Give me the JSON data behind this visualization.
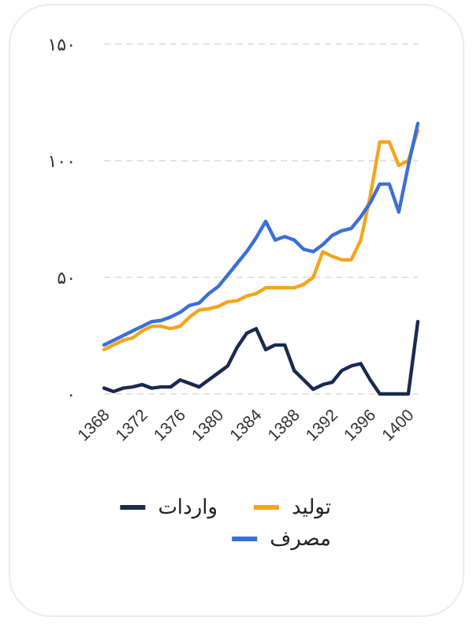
{
  "chart_data": {
    "type": "line",
    "x": [
      1368,
      1369,
      1370,
      1371,
      1372,
      1373,
      1374,
      1375,
      1376,
      1377,
      1378,
      1379,
      1380,
      1381,
      1382,
      1383,
      1384,
      1385,
      1386,
      1387,
      1388,
      1389,
      1390,
      1391,
      1392,
      1393,
      1394,
      1395,
      1396,
      1397,
      1398,
      1399,
      1400,
      1401
    ],
    "series": [
      {
        "name": "تولید",
        "color": "#f4a51c",
        "values": [
          19,
          21,
          23,
          24,
          27,
          29,
          29,
          28,
          29,
          33,
          36,
          36.5,
          37.5,
          39.5,
          40,
          42,
          43,
          45.5,
          45.5,
          45.5,
          45.5,
          47,
          50,
          61,
          59,
          57.5,
          57.5,
          66,
          85,
          108,
          108,
          98,
          100,
          113
        ]
      },
      {
        "name": "واردات",
        "color": "#1a2a4f",
        "values": [
          2.5,
          1,
          2.5,
          3,
          4,
          2.5,
          3,
          3,
          6,
          4.5,
          3,
          6,
          9,
          12,
          20,
          26,
          28,
          19,
          21,
          21,
          10,
          6,
          2,
          4,
          5,
          10,
          12,
          13,
          6,
          0,
          0,
          0,
          0,
          31
        ]
      },
      {
        "name": "مصرف",
        "color": "#3b6fd8",
        "values": [
          21,
          23,
          25,
          27,
          29,
          31,
          31.5,
          33,
          35,
          38,
          39,
          43,
          46,
          51,
          56,
          61,
          67,
          74,
          66,
          67.5,
          66,
          62,
          61,
          64,
          68,
          70,
          71,
          76,
          82,
          90,
          90,
          78,
          98,
          116
        ]
      }
    ],
    "xlim": [
      1368,
      1401
    ],
    "xticks": [
      1368,
      1372,
      1376,
      1380,
      1384,
      1388,
      1392,
      1396,
      1400
    ],
    "ylim": [
      0,
      150
    ],
    "yticks": [
      {
        "value": 0,
        "label": "۰"
      },
      {
        "value": 50,
        "label": "۵۰"
      },
      {
        "value": 100,
        "label": "۱۰۰"
      },
      {
        "value": 150,
        "label": "۱۵۰"
      }
    ],
    "grid": "y",
    "legend": "bottom",
    "line_style": "solid"
  }
}
